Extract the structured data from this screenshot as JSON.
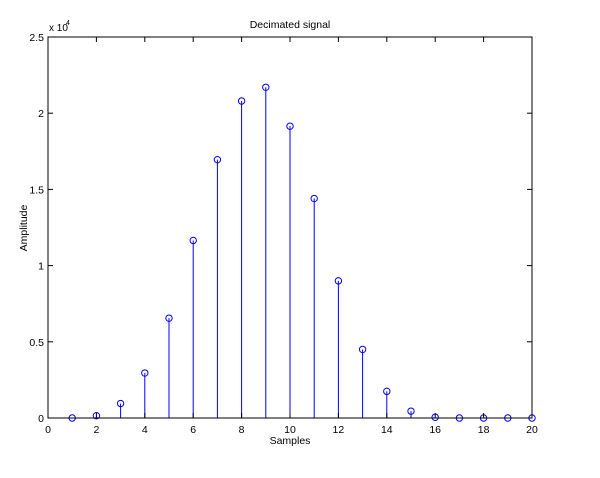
{
  "chart_data": {
    "type": "stem",
    "title": "Decimated signal",
    "xlabel": "Samples",
    "ylabel": "Amplitude",
    "xlim": [
      0,
      20
    ],
    "ylim": [
      0,
      25000
    ],
    "xticks": [
      0,
      2,
      4,
      6,
      8,
      10,
      12,
      14,
      16,
      18,
      20
    ],
    "xtick_labels": [
      "0",
      "2",
      "4",
      "6",
      "8",
      "10",
      "12",
      "14",
      "16",
      "18",
      "20"
    ],
    "yticks": [
      0,
      5000,
      10000,
      15000,
      20000,
      25000
    ],
    "ytick_labels": [
      "0",
      "0.5",
      "1",
      "1.5",
      "2",
      "2.5"
    ],
    "y_multiplier": {
      "base": "x 10",
      "exponent": "4"
    },
    "grid": false,
    "color": "#0000ff",
    "x": [
      1,
      2,
      3,
      4,
      5,
      6,
      7,
      8,
      9,
      10,
      11,
      12,
      13,
      14,
      15,
      16,
      17,
      18,
      19,
      20
    ],
    "values": [
      0,
      150,
      950,
      2950,
      6550,
      11650,
      16950,
      20800,
      21700,
      19150,
      14400,
      9000,
      4500,
      1750,
      450,
      50,
      0,
      0,
      0,
      0
    ]
  }
}
